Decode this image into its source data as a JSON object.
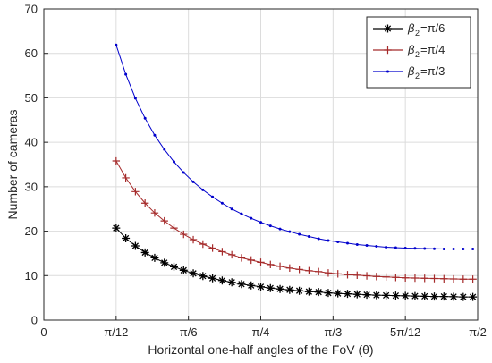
{
  "chart_data": {
    "type": "line",
    "title": "",
    "xlabel": "Horizontal one-half angles of the FoV (θ)",
    "ylabel": "Number of cameras",
    "xlim": [
      0,
      90
    ],
    "ylim": [
      0,
      70
    ],
    "x_unit": "degrees",
    "grid": true,
    "legend_position": "top-right",
    "x_ticks": [
      {
        "value": 0,
        "label": "0"
      },
      {
        "value": 15,
        "label": "π/12"
      },
      {
        "value": 30,
        "label": "π/6"
      },
      {
        "value": 45,
        "label": "π/4"
      },
      {
        "value": 60,
        "label": "π/3"
      },
      {
        "value": 75,
        "label": "5π/12"
      },
      {
        "value": 90,
        "label": "π/2"
      }
    ],
    "y_ticks": [
      0,
      10,
      20,
      30,
      40,
      50,
      60,
      70
    ],
    "x": [
      15,
      17,
      19,
      21,
      23,
      25,
      27,
      29,
      31,
      33,
      35,
      37,
      39,
      41,
      43,
      45,
      47,
      49,
      51,
      53,
      55,
      57,
      59,
      61,
      63,
      65,
      67,
      69,
      71,
      73,
      75,
      77,
      79,
      81,
      83,
      85,
      87,
      89
    ],
    "series": [
      {
        "name": "β₂=π/6",
        "legend_text": "=π/6",
        "color": "#000000",
        "marker": "asterisk",
        "values": [
          20.7,
          18.4,
          16.7,
          15.2,
          14.0,
          12.9,
          12.0,
          11.2,
          10.5,
          9.9,
          9.4,
          8.9,
          8.5,
          8.1,
          7.8,
          7.5,
          7.2,
          7.0,
          6.8,
          6.6,
          6.4,
          6.3,
          6.1,
          6.0,
          5.9,
          5.8,
          5.7,
          5.6,
          5.55,
          5.5,
          5.45,
          5.4,
          5.35,
          5.3,
          5.3,
          5.25,
          5.2,
          5.2
        ]
      },
      {
        "name": "β₂=π/4",
        "legend_text": "=π/4",
        "color": "#a52a2a",
        "marker": "plus",
        "values": [
          35.8,
          32.0,
          28.9,
          26.3,
          24.1,
          22.3,
          20.7,
          19.3,
          18.1,
          17.1,
          16.2,
          15.4,
          14.7,
          14.0,
          13.5,
          13.0,
          12.5,
          12.1,
          11.7,
          11.4,
          11.1,
          10.9,
          10.6,
          10.4,
          10.2,
          10.1,
          9.95,
          9.8,
          9.7,
          9.6,
          9.5,
          9.45,
          9.4,
          9.35,
          9.3,
          9.25,
          9.2,
          9.2
        ]
      },
      {
        "name": "β₂=π/3",
        "legend_text": "=π/3",
        "color": "#0000cc",
        "marker": "dot",
        "values": [
          61.9,
          55.3,
          49.9,
          45.4,
          41.6,
          38.4,
          35.6,
          33.2,
          31.1,
          29.3,
          27.7,
          26.3,
          25.0,
          23.9,
          22.9,
          22.0,
          21.2,
          20.5,
          19.9,
          19.3,
          18.8,
          18.3,
          17.9,
          17.6,
          17.3,
          17.0,
          16.8,
          16.6,
          16.4,
          16.3,
          16.2,
          16.15,
          16.1,
          16.05,
          16.0,
          16.0,
          16.0,
          16.0
        ]
      }
    ]
  }
}
